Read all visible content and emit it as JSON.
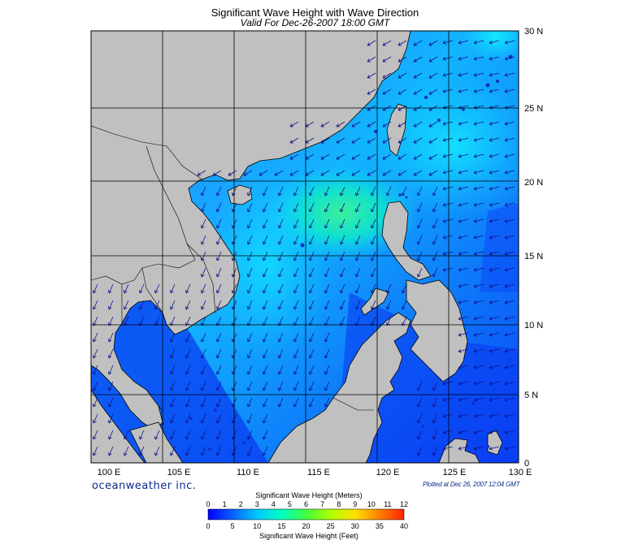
{
  "header": {
    "title": "Significant Wave Height with Wave Direction",
    "subtitle": "Valid For Dec-26-2007 18:00 GMT"
  },
  "map": {
    "lon_labels": [
      "100 E",
      "105 E",
      "110 E",
      "115 E",
      "120 E",
      "125 E",
      "130 E"
    ],
    "lat_labels": [
      "30 N",
      "25 N",
      "20 N",
      "15 N",
      "10 N",
      "5 N",
      "0"
    ],
    "lon_range": [
      100,
      130
    ],
    "lat_range": [
      0,
      30
    ],
    "colors": {
      "land": "#c0c0c0",
      "coast": "#000000",
      "grid": "#000000",
      "arrow": "#111188"
    }
  },
  "footer": {
    "brand": "oceanweather inc.",
    "plotted": "Plotted at Dec 26, 2007 12:04 GMT"
  },
  "legend": {
    "title_top": "Significant Wave Height (Meters)",
    "title_bottom": "Significant Wave Height (Feet)",
    "meters": [
      "0",
      "1",
      "2",
      "3",
      "4",
      "5",
      "6",
      "7",
      "8",
      "9",
      "10",
      "11",
      "12"
    ],
    "feet": [
      "0",
      "5",
      "10",
      "15",
      "20",
      "25",
      "30",
      "35",
      "40"
    ],
    "colors": [
      "#0000ff",
      "#0a5fff",
      "#00c8ff",
      "#00ffc0",
      "#40ff40",
      "#b0ff00",
      "#ffe000",
      "#ff8000",
      "#ff2000"
    ]
  }
}
